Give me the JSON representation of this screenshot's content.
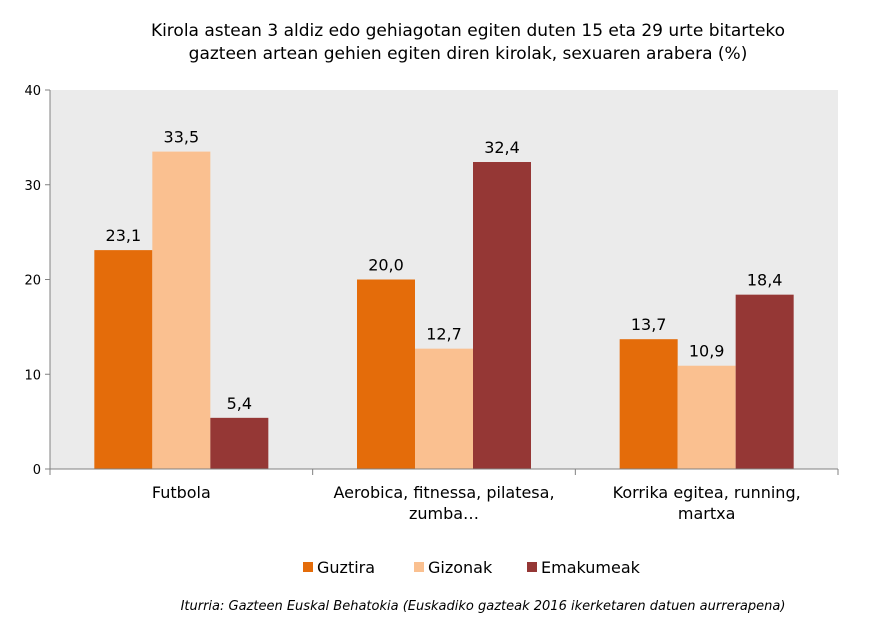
{
  "chart_data": {
    "type": "bar",
    "title_lines": [
      "Kirola astean 3 aldiz edo gehiagotan egiten duten 15 eta 29 urte bitarteko",
      "gazteen artean gehien egiten diren kirolak, sexuaren arabera (%)"
    ],
    "categories": [
      [
        "Futbola"
      ],
      [
        "Aerobica, fitnessa, pilatesa,",
        "zumba…"
      ],
      [
        "Korrika egitea, running,",
        "martxa"
      ]
    ],
    "series": [
      {
        "name": "Guztira",
        "color": "#E46C0A",
        "values": [
          23.1,
          20.0,
          13.7
        ],
        "labels": [
          "23,1",
          "20,0",
          "13,7"
        ]
      },
      {
        "name": "Gizonak",
        "color": "#FAC090",
        "values": [
          33.5,
          12.7,
          10.9
        ],
        "labels": [
          "33,5",
          "12,7",
          "10,9"
        ]
      },
      {
        "name": "Emakumeak",
        "color": "#953735",
        "values": [
          5.4,
          32.4,
          18.4
        ],
        "labels": [
          "5,4",
          "32,4",
          "18,4"
        ]
      }
    ],
    "yticks": [
      0,
      10,
      20,
      30,
      40
    ],
    "ylim": [
      0,
      40
    ],
    "grid": false,
    "legend": "bottom",
    "plot_background": "#EBEBEB",
    "source": "Iturria: Gazteen Euskal Behatokia (Euskadiko gazteak 2016 ikerketaren datuen aurrerapena)"
  }
}
